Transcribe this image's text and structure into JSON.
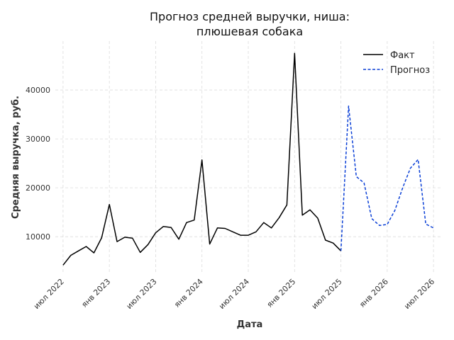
{
  "chart_data": {
    "type": "line",
    "title_lines": [
      "Прогноз средней выручки, ниша:",
      "плюшевая собака"
    ],
    "xlabel": "Дата",
    "ylabel": "Средняя выручка, руб.",
    "x_ticks": [
      "2022-07",
      "2023-01",
      "2023-07",
      "2024-01",
      "2024-07",
      "2025-01",
      "2025-07",
      "2026-01",
      "2026-07"
    ],
    "x_tick_labels": [
      "июл 2022",
      "янв 2023",
      "июл 2023",
      "янв 2024",
      "июл 2024",
      "янв 2025",
      "июл 2025",
      "янв 2026",
      "июл 2026"
    ],
    "xlim": [
      "2022-06",
      "2026-08"
    ],
    "y_ticks": [
      10000,
      20000,
      30000,
      40000
    ],
    "y_tick_labels": [
      "10000",
      "20000",
      "30000",
      "40000"
    ],
    "ylim": [
      2500,
      50000
    ],
    "grid": true,
    "legend_position": "top-right",
    "series": [
      {
        "name": "Факт",
        "color": "#000000",
        "style": "solid",
        "x": [
          "2022-07",
          "2022-08",
          "2022-09",
          "2022-10",
          "2022-11",
          "2022-12",
          "2023-01",
          "2023-02",
          "2023-03",
          "2023-04",
          "2023-05",
          "2023-06",
          "2023-07",
          "2023-08",
          "2023-09",
          "2023-10",
          "2023-11",
          "2023-12",
          "2024-01",
          "2024-02",
          "2024-03",
          "2024-04",
          "2024-05",
          "2024-06",
          "2024-07",
          "2024-08",
          "2024-09",
          "2024-10",
          "2024-11",
          "2024-12",
          "2025-01",
          "2025-02",
          "2025-03",
          "2025-04",
          "2025-05",
          "2025-06",
          "2025-07"
        ],
        "y": [
          4200,
          6200,
          7100,
          8000,
          6700,
          9800,
          16600,
          9000,
          9900,
          9700,
          6800,
          8400,
          10800,
          12100,
          11900,
          9500,
          12900,
          13400,
          25700,
          8500,
          11800,
          11700,
          11000,
          10300,
          10300,
          11000,
          12900,
          11800,
          13900,
          16500,
          47500,
          14400,
          15500,
          13800,
          9300,
          8700,
          7100
        ]
      },
      {
        "name": "Прогноз",
        "color": "#0a3fd6",
        "style": "dashed",
        "x": [
          "2025-07",
          "2025-08",
          "2025-09",
          "2025-10",
          "2025-11",
          "2025-12",
          "2026-01",
          "2026-02",
          "2026-03",
          "2026-04",
          "2026-05",
          "2026-06",
          "2026-07"
        ],
        "y": [
          7100,
          36700,
          22300,
          21000,
          13700,
          12300,
          12500,
          15400,
          20000,
          24000,
          25800,
          12600,
          11800
        ]
      }
    ]
  }
}
